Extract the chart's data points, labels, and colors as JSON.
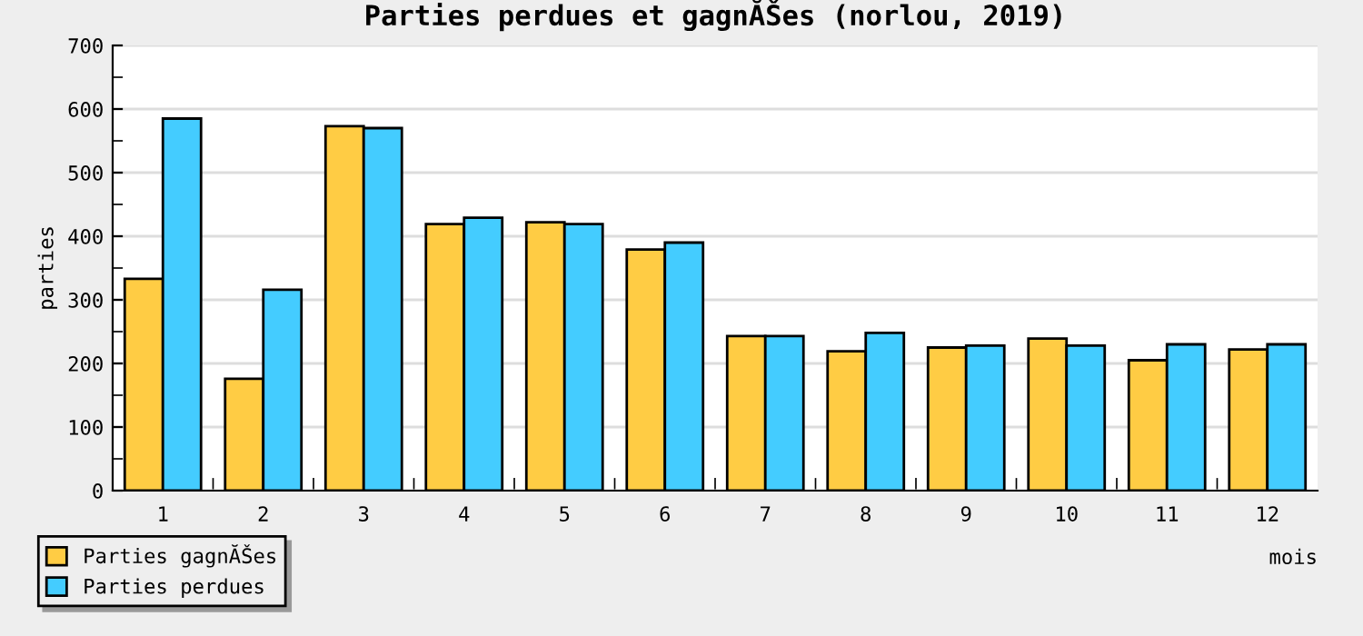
{
  "chart_data": {
    "type": "bar",
    "title": "Parties perdues et gagnĂŠes (norlou, 2019)",
    "xlabel": "mois",
    "ylabel": "parties",
    "categories": [
      "1",
      "2",
      "3",
      "4",
      "5",
      "6",
      "7",
      "8",
      "9",
      "10",
      "11",
      "12"
    ],
    "series": [
      {
        "name": "Parties gagnĂŠes",
        "color": "#ffcc44",
        "values": [
          333,
          176,
          573,
          419,
          422,
          379,
          243,
          219,
          225,
          239,
          205,
          222
        ]
      },
      {
        "name": "Parties perdues",
        "color": "#44ccff",
        "values": [
          585,
          316,
          570,
          429,
          419,
          390,
          243,
          248,
          228,
          228,
          230,
          230
        ]
      }
    ],
    "ylim": [
      0,
      700
    ],
    "yticks": [
      0,
      100,
      200,
      300,
      400,
      500,
      600,
      700
    ],
    "grid": "y",
    "legend": "bottom left"
  }
}
